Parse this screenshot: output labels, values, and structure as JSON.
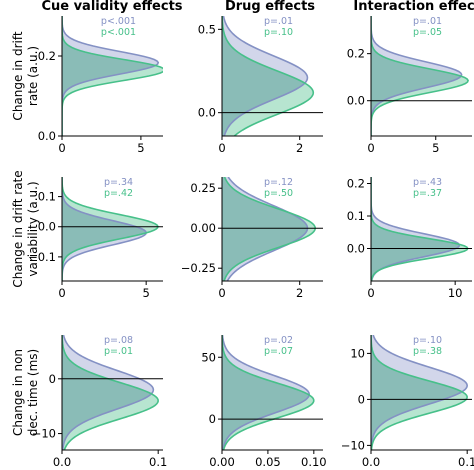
{
  "column_titles": [
    "Cue validity effects",
    "Drug effects",
    "Interaction effects"
  ],
  "row_labels": [
    [
      "Change in drift",
      "rate (a.u.)"
    ],
    [
      "Change in drift rate",
      "variability (a.u.)"
    ],
    [
      "Change in non",
      "dec. time (ms)"
    ]
  ],
  "colors": {
    "series_a": "#8491c4",
    "series_b": "#47c08a",
    "fill_a": "#c3c8e3",
    "fill_b": "#9fdcc0",
    "overlap": "#6fa3a8"
  },
  "chart_data": [
    {
      "type": "area",
      "row": 0,
      "col": 0,
      "xlim": [
        0,
        6.4
      ],
      "ylim": [
        0,
        0.3
      ],
      "xticks": [
        0,
        5
      ],
      "yticks": [
        0.0,
        0.2
      ],
      "xtick_labels": [
        "0",
        "5"
      ],
      "ytick_labels": [
        "0.0",
        "0.2"
      ],
      "zero_line": true,
      "series": [
        {
          "p_label": "p<.001",
          "mean": 0.183,
          "sd": 0.028,
          "peak": 6.1
        },
        {
          "p_label": "p<.001",
          "mean": 0.165,
          "sd": 0.026,
          "peak": 6.5
        }
      ]
    },
    {
      "type": "area",
      "row": 0,
      "col": 1,
      "xlim": [
        0,
        2.6
      ],
      "ylim": [
        -0.14,
        0.58
      ],
      "xticks": [
        0,
        2
      ],
      "yticks": [
        0.0,
        0.5
      ],
      "xtick_labels": [
        "0",
        "2"
      ],
      "ytick_labels": [
        "0.0",
        "0.5"
      ],
      "zero_line": true,
      "series": [
        {
          "p_label": "p=.01",
          "mean": 0.21,
          "sd": 0.13,
          "peak": 2.2
        },
        {
          "p_label": "p=.10",
          "mean": 0.12,
          "sd": 0.13,
          "peak": 2.35
        }
      ]
    },
    {
      "type": "area",
      "row": 0,
      "col": 2,
      "xlim": [
        0,
        7.8
      ],
      "ylim": [
        -0.15,
        0.36
      ],
      "xticks": [
        0,
        5
      ],
      "yticks": [
        0.0,
        0.2
      ],
      "xtick_labels": [
        "0",
        "5"
      ],
      "ytick_labels": [
        "0.0",
        "0.2"
      ],
      "zero_line": true,
      "series": [
        {
          "p_label": "p=.01",
          "mean": 0.11,
          "sd": 0.055,
          "peak": 7.0
        },
        {
          "p_label": "p=.05",
          "mean": 0.085,
          "sd": 0.05,
          "peak": 7.5
        }
      ]
    },
    {
      "type": "area",
      "row": 1,
      "col": 0,
      "xlim": [
        0,
        6.0
      ],
      "ylim": [
        -0.18,
        0.165
      ],
      "xticks": [
        0,
        5
      ],
      "yticks": [
        -0.1,
        0.0,
        0.1
      ],
      "xtick_labels": [
        "0",
        "5"
      ],
      "ytick_labels": [
        "−0.1",
        "0.0",
        "0.1"
      ],
      "zero_line": true,
      "series": [
        {
          "p_label": "p=.34",
          "mean": -0.02,
          "sd": 0.04,
          "peak": 5.0
        },
        {
          "p_label": "p=.42",
          "mean": 0.0,
          "sd": 0.04,
          "peak": 5.7
        }
      ]
    },
    {
      "type": "area",
      "row": 1,
      "col": 1,
      "xlim": [
        0,
        2.6
      ],
      "ylim": [
        -0.33,
        0.32
      ],
      "xticks": [
        0,
        2
      ],
      "yticks": [
        -0.25,
        0.0,
        0.25
      ],
      "xtick_labels": [
        "0",
        "2"
      ],
      "ytick_labels": [
        "−0.25",
        "0.00",
        "0.25"
      ],
      "zero_line": true,
      "series": [
        {
          "p_label": "p=.12",
          "mean": 0.0,
          "sd": 0.14,
          "peak": 2.2
        },
        {
          "p_label": "p=.50",
          "mean": 0.0,
          "sd": 0.12,
          "peak": 2.4
        }
      ]
    },
    {
      "type": "area",
      "row": 1,
      "col": 2,
      "xlim": [
        0,
        12
      ],
      "ylim": [
        -0.1,
        0.22
      ],
      "xticks": [
        0,
        10
      ],
      "yticks": [
        0.0,
        0.1,
        0.2
      ],
      "xtick_labels": [
        "0",
        "10"
      ],
      "ytick_labels": [
        "0.0",
        "0.1",
        "0.2"
      ],
      "zero_line": true,
      "series": [
        {
          "p_label": "p=.43",
          "mean": 0.01,
          "sd": 0.035,
          "peak": 10.5
        },
        {
          "p_label": "p=.37",
          "mean": 0.0,
          "sd": 0.03,
          "peak": 11.5
        }
      ]
    },
    {
      "type": "area",
      "row": 2,
      "col": 0,
      "xlim": [
        0,
        0.105
      ],
      "ylim": [
        -13,
        8
      ],
      "xticks": [
        0,
        0.1
      ],
      "yticks": [
        -10,
        0
      ],
      "xtick_labels": [
        "0.0",
        "0.1"
      ],
      "ytick_labels": [
        "−10",
        "0"
      ],
      "zero_line": true,
      "series": [
        {
          "p_label": "p=.08",
          "mean": -2.0,
          "sd": 3.5,
          "peak": 0.095
        },
        {
          "p_label": "p=.01",
          "mean": -4.0,
          "sd": 3.3,
          "peak": 0.1
        }
      ]
    },
    {
      "type": "area",
      "row": 2,
      "col": 1,
      "xlim": [
        0,
        0.11
      ],
      "ylim": [
        -25,
        68
      ],
      "xticks": [
        0,
        0.05,
        0.1
      ],
      "yticks": [
        0,
        50
      ],
      "xtick_labels": [
        "0.00",
        "0.05",
        "0.10"
      ],
      "ytick_labels": [
        "0",
        "50"
      ],
      "zero_line": true,
      "series": [
        {
          "p_label": "p=.02",
          "mean": 20,
          "sd": 15,
          "peak": 0.095
        },
        {
          "p_label": "p=.07",
          "mean": 15,
          "sd": 14,
          "peak": 0.1
        }
      ]
    },
    {
      "type": "area",
      "row": 2,
      "col": 2,
      "xlim": [
        0,
        0.105
      ],
      "ylim": [
        -11,
        14
      ],
      "xticks": [
        0,
        0.1
      ],
      "yticks": [
        -10,
        0,
        10
      ],
      "xtick_labels": [
        "0.0",
        "0.1"
      ],
      "ytick_labels": [
        "−10",
        "0",
        "10"
      ],
      "zero_line": true,
      "series": [
        {
          "p_label": "p=.10",
          "mean": 3.0,
          "sd": 4.0,
          "peak": 0.1
        },
        {
          "p_label": "p=.38",
          "mean": 0.5,
          "sd": 3.5,
          "peak": 0.1
        }
      ]
    }
  ]
}
